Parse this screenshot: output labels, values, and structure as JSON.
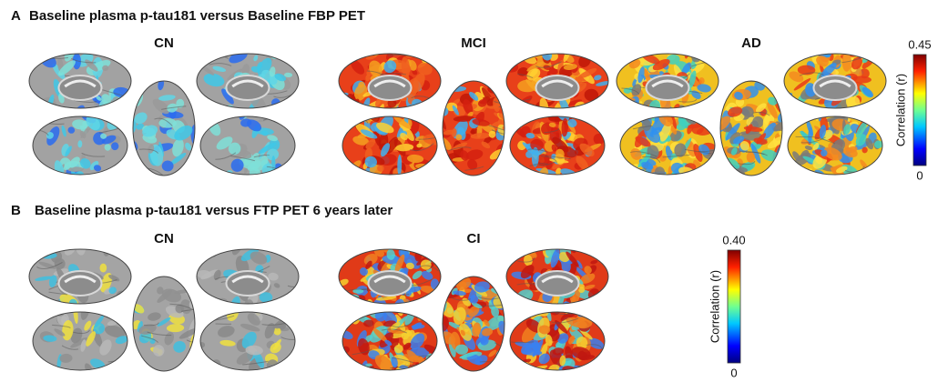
{
  "panels": [
    {
      "letter": "A",
      "title": "Baseline plasma p-tau181 versus Baseline FBP PET",
      "groups": [
        "CN",
        "MCI",
        "AD"
      ],
      "colorbar": {
        "label": "Correlation (r)",
        "max": "0.45",
        "min": "0"
      }
    },
    {
      "letter": "B",
      "title": "Baseline plasma p-tau181 versus FTP PET 6 years later",
      "groups": [
        "CN",
        "CI"
      ],
      "colorbar": {
        "label": "Correlation (r)",
        "max": "0.40",
        "min": "0"
      }
    }
  ]
}
